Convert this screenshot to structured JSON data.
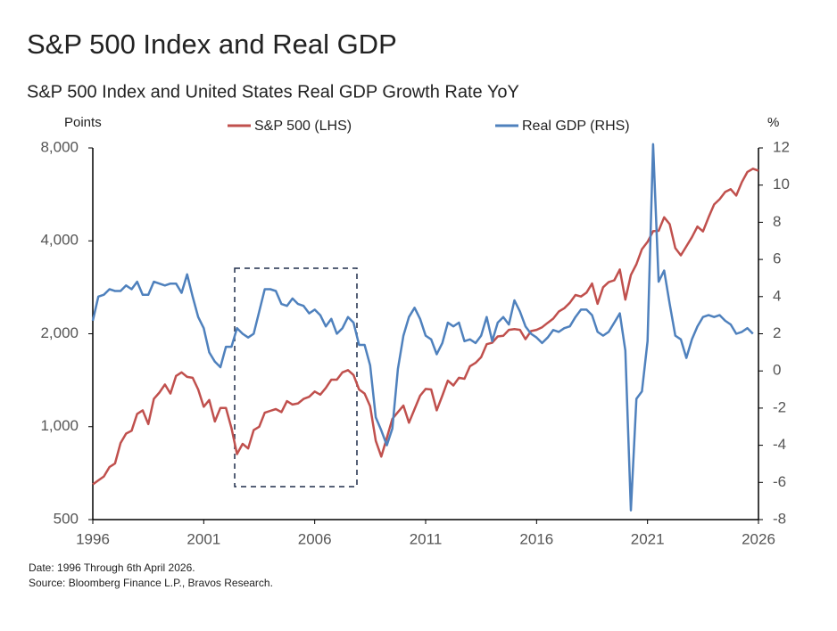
{
  "chart_data": {
    "type": "line",
    "title": "S&P 500 Index and Real GDP",
    "subtitle": "S&P 500 Index and United States Real GDP Growth Rate YoY",
    "y_label": "Points",
    "y2_label": "%",
    "notes": [
      "Date: 1996 Through 6th April 2026.",
      "Source: Bloomberg Finance L.P., Bravos Research."
    ],
    "yscale": "log",
    "x": [
      1996,
      1996.25,
      1996.5,
      1996.75,
      1997,
      1997.25,
      1997.5,
      1997.75,
      1998,
      1998.25,
      1998.5,
      1998.75,
      1999,
      1999.25,
      1999.5,
      1999.75,
      2000,
      2000.25,
      2000.5,
      2000.75,
      2001,
      2001.25,
      2001.5,
      2001.75,
      2002,
      2002.25,
      2002.5,
      2002.75,
      2003,
      2003.25,
      2003.5,
      2003.75,
      2004,
      2004.25,
      2004.5,
      2004.75,
      2005,
      2005.25,
      2005.5,
      2005.75,
      2006,
      2006.25,
      2006.5,
      2006.75,
      2007,
      2007.25,
      2007.5,
      2007.75,
      2008,
      2008.25,
      2008.5,
      2008.75,
      2009,
      2009.25,
      2009.5,
      2009.75,
      2010,
      2010.25,
      2010.5,
      2010.75,
      2011,
      2011.25,
      2011.5,
      2011.75,
      2012,
      2012.25,
      2012.5,
      2012.75,
      2013,
      2013.25,
      2013.5,
      2013.75,
      2014,
      2014.25,
      2014.5,
      2014.75,
      2015,
      2015.25,
      2015.5,
      2015.75,
      2016,
      2016.25,
      2016.5,
      2016.75,
      2017,
      2017.25,
      2017.5,
      2017.75,
      2018,
      2018.25,
      2018.5,
      2018.75,
      2019,
      2019.25,
      2019.5,
      2019.75,
      2020,
      2020.25,
      2020.5,
      2020.75,
      2021,
      2021.25,
      2021.5,
      2021.75,
      2022,
      2022.25,
      2022.5,
      2022.75,
      2023,
      2023.25,
      2023.5,
      2023.75,
      2024,
      2024.25,
      2024.5,
      2024.75,
      2025,
      2025.25,
      2025.5,
      2025.75,
      2026
    ],
    "series": [
      {
        "name": "S&P 500 (LHS)",
        "color": "#c0504d",
        "axis": "y",
        "values": [
          650,
          670,
          690,
          740,
          760,
          885,
          950,
          970,
          1100,
          1130,
          1020,
          1230,
          1290,
          1370,
          1280,
          1460,
          1500,
          1450,
          1440,
          1320,
          1160,
          1220,
          1040,
          1150,
          1150,
          990,
          815,
          880,
          850,
          975,
          1000,
          1110,
          1125,
          1140,
          1115,
          1210,
          1180,
          1190,
          1230,
          1250,
          1300,
          1270,
          1335,
          1420,
          1420,
          1500,
          1525,
          1470,
          1320,
          1280,
          1165,
          900,
          800,
          920,
          1060,
          1115,
          1170,
          1030,
          1140,
          1260,
          1325,
          1320,
          1130,
          1260,
          1410,
          1360,
          1440,
          1430,
          1570,
          1610,
          1680,
          1850,
          1870,
          1960,
          1970,
          2060,
          2070,
          2060,
          1920,
          2040,
          2060,
          2100,
          2170,
          2240,
          2360,
          2420,
          2520,
          2670,
          2640,
          2720,
          2910,
          2500,
          2830,
          2940,
          2980,
          3230,
          2580,
          3100,
          3360,
          3760,
          3970,
          4300,
          4310,
          4770,
          4530,
          3790,
          3590,
          3840,
          4110,
          4450,
          4290,
          4770,
          5250,
          5460,
          5760,
          5880,
          5610,
          6200,
          6690,
          6850,
          6750
        ]
      },
      {
        "name": "Real GDP (RHS)",
        "color": "#4f81bd",
        "axis": "y2",
        "values": [
          2.7,
          4.0,
          4.1,
          4.4,
          4.3,
          4.3,
          4.6,
          4.4,
          4.8,
          4.1,
          4.1,
          4.8,
          4.7,
          4.6,
          4.7,
          4.7,
          4.2,
          5.2,
          4.0,
          2.9,
          2.3,
          1.0,
          0.5,
          0.2,
          1.3,
          1.3,
          2.3,
          2.0,
          1.8,
          2.0,
          3.2,
          4.4,
          4.4,
          4.3,
          3.6,
          3.5,
          3.9,
          3.6,
          3.5,
          3.1,
          3.3,
          3.0,
          2.4,
          2.8,
          2.0,
          2.3,
          2.9,
          2.6,
          1.4,
          1.4,
          0.3,
          -2.5,
          -3.2,
          -4.0,
          -3.1,
          0.1,
          1.9,
          2.9,
          3.4,
          2.8,
          1.9,
          1.7,
          0.9,
          1.5,
          2.6,
          2.4,
          2.6,
          1.6,
          1.7,
          1.5,
          1.9,
          2.9,
          1.6,
          2.6,
          2.9,
          2.5,
          3.8,
          3.2,
          2.4,
          2.0,
          1.8,
          1.5,
          1.8,
          2.2,
          2.1,
          2.3,
          2.4,
          2.9,
          3.3,
          3.3,
          3.0,
          2.1,
          1.9,
          2.1,
          2.6,
          3.1,
          1.1,
          -7.5,
          -1.5,
          -1.1,
          1.6,
          12.2,
          4.8,
          5.4,
          3.6,
          1.9,
          1.7,
          0.7,
          1.7,
          2.4,
          2.9,
          3.0,
          2.9,
          3.0,
          2.7,
          2.5,
          2.0,
          2.1,
          2.3,
          2.0,
          null
        ]
      }
    ],
    "xlim": [
      1996,
      2026
    ],
    "xticks": [
      1996,
      2001,
      2006,
      2011,
      2016,
      2021,
      2026
    ],
    "ylim": [
      500,
      8000
    ],
    "yticks": [
      500,
      {
        "value": 1000,
        "label": "1,000"
      },
      {
        "value": 2000,
        "label": "2,000"
      },
      {
        "value": 4000,
        "label": "4,000"
      },
      {
        "value": 8000,
        "label": "8,000"
      }
    ],
    "y2lim": [
      -8,
      12
    ],
    "y2ticks": [
      -8,
      -6,
      -4,
      -2,
      0,
      2,
      4,
      6,
      8,
      10,
      12
    ],
    "grid": false
  }
}
